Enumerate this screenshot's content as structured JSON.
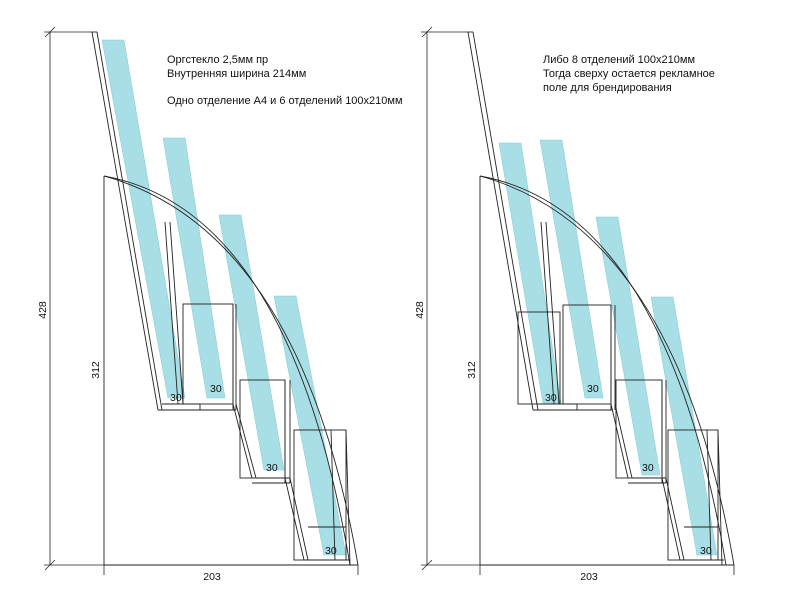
{
  "left": {
    "note_line1": "Оргстекло 2,5мм пр",
    "note_line2": "Внутренняя ширина 214мм",
    "note_line3": "Одно отделение А4 и 6 отделений 100х210мм",
    "dim_height_total": "428",
    "dim_height_base": "312",
    "dim_width": "203",
    "pocket_labels": [
      "30",
      "30",
      "30",
      "30"
    ]
  },
  "right": {
    "note_line1": "Либо 8 отделений 100х210мм",
    "note_line2": "Тогда сверху остается рекламное",
    "note_line3": "поле для брендирования",
    "dim_height_total": "428",
    "dim_height_base": "312",
    "dim_width": "203",
    "pocket_labels": [
      "30",
      "30",
      "30",
      "30"
    ]
  },
  "colors": {
    "sheet": "#a8dfe6",
    "line": "#222222",
    "background": "#ffffff"
  }
}
